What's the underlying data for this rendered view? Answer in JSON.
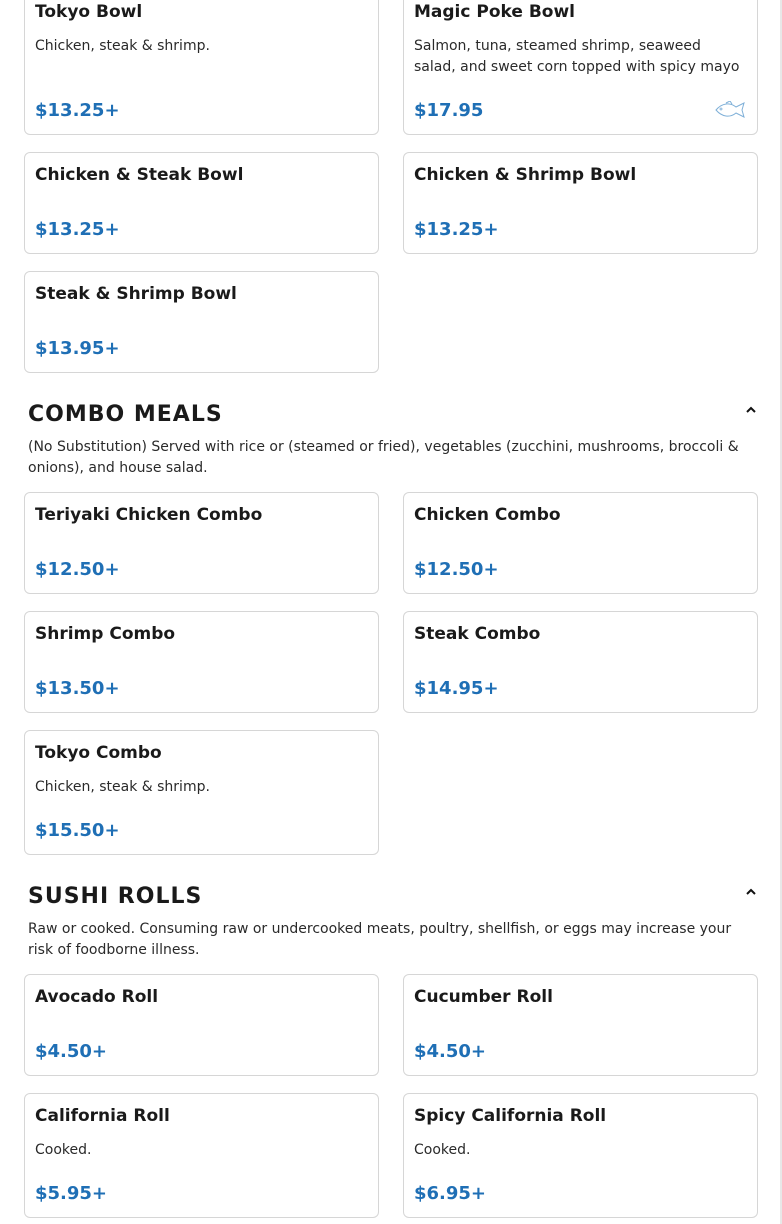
{
  "sections": [
    {
      "title": "",
      "description": "",
      "items": [
        {
          "name": "Tokyo Bowl",
          "description": "Chicken, steak & shrimp.",
          "price": "$13.25+"
        },
        {
          "name": "Magic Poke Bowl",
          "description": "Salmon, tuna, steamed shrimp, seaweed salad, and sweet corn topped with spicy mayo",
          "price": "$17.95",
          "icon": "fish-icon"
        },
        {
          "name": "Chicken & Steak Bowl",
          "price": "$13.25+"
        },
        {
          "name": "Chicken & Shrimp Bowl",
          "price": "$13.25+"
        },
        {
          "name": "Steak & Shrimp Bowl",
          "price": "$13.95+"
        }
      ]
    },
    {
      "title": "COMBO MEALS",
      "description": "(No Substitution) Served with rice or (steamed or fried), vegetables (zucchini, mushrooms, broccoli & onions), and house salad.",
      "icon": "chevron-up-icon",
      "items": [
        {
          "name": "Teriyaki Chicken Combo",
          "price": "$12.50+"
        },
        {
          "name": "Chicken Combo",
          "price": "$12.50+"
        },
        {
          "name": "Shrimp Combo",
          "price": "$13.50+"
        },
        {
          "name": "Steak Combo",
          "price": "$14.95+"
        },
        {
          "name": "Tokyo Combo",
          "description": "Chicken, steak & shrimp.",
          "price": "$15.50+"
        }
      ]
    },
    {
      "title": "SUSHI ROLLS",
      "description": "Raw or cooked. Consuming raw or undercooked meats, poultry, shellfish, or eggs may increase your risk of foodborne illness.",
      "icon": "chevron-up-icon",
      "items": [
        {
          "name": "Avocado Roll",
          "price": "$4.50+"
        },
        {
          "name": "Cucumber Roll",
          "price": "$4.50+"
        },
        {
          "name": "California Roll",
          "description": "Cooked.",
          "price": "$5.95+"
        },
        {
          "name": "Spicy California Roll",
          "description": "Cooked.",
          "price": "$6.95+"
        }
      ]
    }
  ],
  "colors": {
    "price": "#1f6fb5",
    "border": "#d6d6d6"
  }
}
